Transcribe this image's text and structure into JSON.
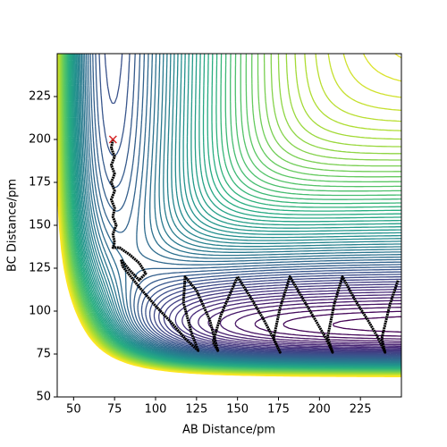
{
  "chart_data": {
    "type": "contour",
    "xlabel": "AB Distance/pm",
    "ylabel": "BC Distance/pm",
    "xlim": [
      40,
      250
    ],
    "ylim": [
      50,
      250
    ],
    "xticks": [
      50,
      75,
      100,
      125,
      150,
      175,
      200,
      225
    ],
    "yticks": [
      50,
      75,
      100,
      125,
      150,
      175,
      200,
      225
    ],
    "series": [
      {
        "color": "#000000",
        "marker": "line",
        "x": [
          74,
          73,
          75,
          73,
          75,
          73,
          75,
          73,
          75,
          74,
          76,
          74,
          75,
          74,
          78,
          84,
          90,
          94,
          90,
          84,
          79,
          80,
          90,
          100,
          110,
          118,
          126,
          122,
          117,
          118,
          125,
          133,
          138,
          135,
          140,
          150,
          158,
          166,
          172,
          176,
          172,
          176,
          182,
          190,
          198,
          204,
          208,
          205,
          209,
          214,
          222,
          230,
          236,
          240,
          238,
          243,
          248
        ],
        "y": [
          200,
          195,
          190,
          185,
          180,
          175,
          170,
          165,
          160,
          155,
          150,
          145,
          140,
          137,
          137,
          133,
          128,
          122,
          118,
          124,
          130,
          126,
          114,
          103,
          93,
          84,
          77,
          87,
          105,
          120,
          112,
          95,
          77,
          82,
          98,
          120,
          108,
          95,
          84,
          76,
          84,
          102,
          120,
          107,
          94,
          84,
          76,
          85,
          104,
          120,
          106,
          94,
          84,
          76,
          84,
          104,
          118
        ]
      },
      {
        "color": "#d62728",
        "marker": "x",
        "x": [
          74
        ],
        "y": [
          200
        ]
      }
    ]
  }
}
